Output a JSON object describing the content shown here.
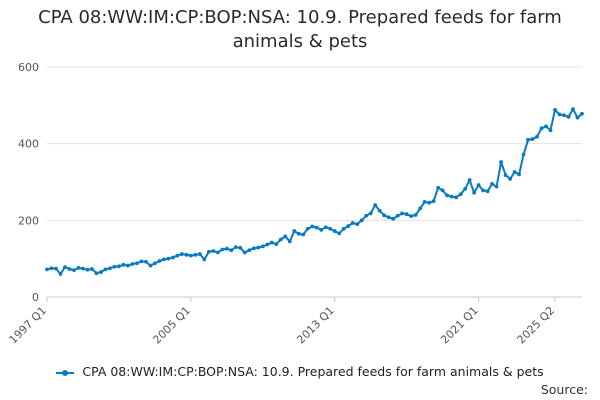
{
  "chart_data": {
    "type": "line",
    "title": "CPA 08:WW:IM:CP:BOP:NSA: 10.9. Prepared feeds for farm animals & pets",
    "xlabel": "",
    "ylabel": "",
    "ylim": [
      0,
      600
    ],
    "yticks": [
      0,
      200,
      400,
      600
    ],
    "xtick_labels": [
      "1997 Q1",
      "2005 Q1",
      "2013 Q1",
      "2021 Q1",
      "2025 Q2"
    ],
    "grid": "horizontal",
    "legend": "bottom",
    "color": "#0a7abf",
    "series": [
      {
        "name": "CPA 08:WW:IM:CP:BOP:NSA: 10.9. Prepared feeds for farm animals & pets",
        "start_year": 1997,
        "values": [
          72,
          75,
          74,
          60,
          78,
          73,
          70,
          76,
          74,
          71,
          73,
          62,
          65,
          72,
          75,
          79,
          80,
          84,
          82,
          86,
          88,
          93,
          92,
          82,
          88,
          94,
          98,
          100,
          103,
          108,
          112,
          110,
          108,
          110,
          112,
          98,
          118,
          120,
          116,
          124,
          126,
          122,
          130,
          128,
          116,
          122,
          127,
          129,
          132,
          137,
          142,
          138,
          150,
          158,
          145,
          172,
          165,
          163,
          178,
          184,
          181,
          175,
          182,
          178,
          172,
          166,
          178,
          185,
          193,
          190,
          200,
          212,
          218,
          240,
          225,
          213,
          208,
          204,
          212,
          218,
          216,
          211,
          214,
          231,
          248,
          246,
          250,
          285,
          278,
          265,
          262,
          260,
          268,
          282,
          305,
          272,
          292,
          278,
          276,
          295,
          288,
          352,
          318,
          308,
          326,
          320,
          372,
          410,
          412,
          418,
          440,
          445,
          435,
          488,
          476,
          474,
          470,
          490,
          468,
          478
        ]
      }
    ]
  },
  "legend_label": "CPA 08:WW:IM:CP:BOP:NSA: 10.9. Prepared feeds for farm animals & pets",
  "source_label": "Source:"
}
